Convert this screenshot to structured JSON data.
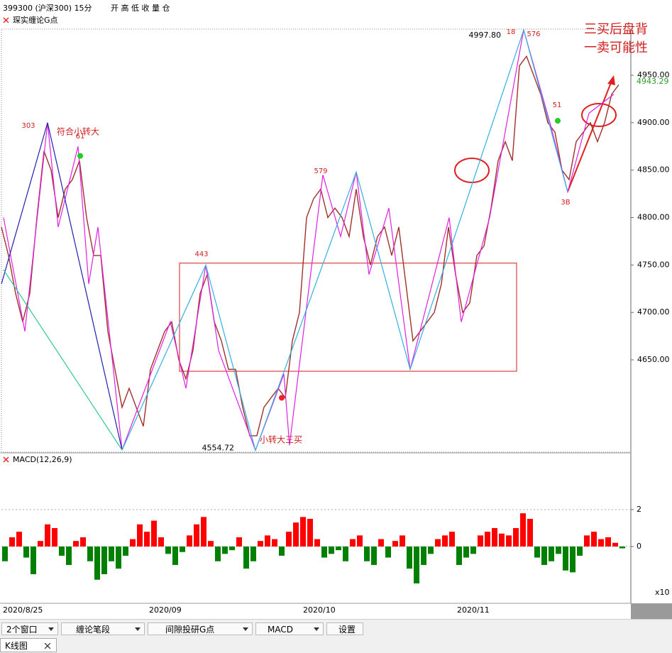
{
  "header": {
    "symbol": "399300 (沪深300) 15分",
    "fields": "开 高 低 收 量 仓",
    "indicator": "琛实缠论G点"
  },
  "chart_data": [
    {
      "type": "line",
      "ylim": [
        4553.5,
        4997.9
      ],
      "xlim": [
        0,
        88.7
      ],
      "yticks": [
        {
          "value": 4950,
          "label": "4950.00"
        },
        {
          "value": 4900,
          "label": "4900.00"
        },
        {
          "value": 4850,
          "label": "4850.00"
        },
        {
          "value": 4800,
          "label": "4800.00"
        },
        {
          "value": 4750,
          "label": "4750.00"
        },
        {
          "value": 4700,
          "label": "4700.00"
        },
        {
          "value": 4650,
          "label": "4650.00"
        }
      ],
      "xticks": [
        {
          "value": 0,
          "label": "2020/8/25"
        },
        {
          "value": 20.6,
          "label": "2020/09"
        },
        {
          "value": 42.3,
          "label": "2020/10"
        },
        {
          "value": 64,
          "label": "2020/11"
        }
      ],
      "last_value": 4943.29,
      "high_label": {
        "value": 4997.8,
        "label": "4997.80"
      },
      "low_label": {
        "value": 4554.72,
        "label": "4554.72"
      },
      "zone": {
        "x": [
          25.1,
          72.6
        ],
        "y": [
          4638,
          4752
        ]
      },
      "series": [
        {
          "color": "#a0302a",
          "x": [
            0,
            1,
            2,
            3,
            4,
            5,
            6,
            7,
            8,
            9,
            10,
            11,
            12,
            13,
            14,
            15,
            16,
            17,
            18,
            19,
            20,
            21,
            22,
            23,
            24,
            25,
            26,
            27,
            28,
            29,
            30,
            31,
            32,
            33,
            34,
            35,
            36,
            37,
            38,
            39,
            40,
            41,
            42,
            43,
            44,
            45,
            46,
            47,
            48,
            49,
            50,
            51,
            52,
            53,
            54,
            55,
            56,
            57,
            58,
            59,
            60,
            61,
            62,
            63,
            64,
            65,
            66,
            67,
            68,
            69,
            70,
            71,
            72,
            73,
            74,
            75,
            76,
            77,
            78,
            79,
            80,
            81,
            82,
            83,
            84,
            85,
            86,
            87
          ],
          "values": [
            4790,
            4760,
            4720,
            4690,
            4720,
            4800,
            4870,
            4850,
            4800,
            4830,
            4840,
            4860,
            4800,
            4760,
            4760,
            4680,
            4640,
            4600,
            4620,
            4600,
            4580,
            4640,
            4660,
            4680,
            4690,
            4650,
            4630,
            4660,
            4720,
            4740,
            4690,
            4670,
            4640,
            4640,
            4600,
            4570,
            4570,
            4600,
            4610,
            4620,
            4610,
            4670,
            4700,
            4800,
            4820,
            4830,
            4800,
            4810,
            4800,
            4780,
            4830,
            4780,
            4750,
            4780,
            4790,
            4760,
            4790,
            4730,
            4670,
            4680,
            4690,
            4700,
            4730,
            4790,
            4740,
            4700,
            4710,
            4760,
            4770,
            4810,
            4860,
            4880,
            4860,
            4960,
            4970,
            4950,
            4930,
            4900,
            4890,
            4850,
            4840,
            4880,
            4890,
            4900,
            4880,
            4900,
            4930,
            4940
          ]
        },
        {
          "color": "#e020e0",
          "x": [
            0.3,
            3.3,
            6.5,
            8,
            10.8,
            12.3,
            13.6,
            17,
            23.8,
            26,
            28.8,
            30.6,
            35.8,
            39.8,
            40.6,
            45.3,
            47.8,
            50,
            51.8,
            54.6,
            57.6,
            63.1,
            64.8,
            68.8,
            73.6,
            77.3,
            79.8,
            82.8,
            86.3
          ],
          "values": [
            4800,
            4680,
            4900,
            4790,
            4875,
            4730,
            4790,
            4555,
            4690,
            4620,
            4750,
            4660,
            4554.72,
            4635,
            4560,
            4845,
            4780,
            4848,
            4740,
            4810,
            4640,
            4800,
            4690,
            4800,
            4997.8,
            4900,
            4827,
            4910,
            4930
          ]
        },
        {
          "color": "#2020b0",
          "x": [
            0,
            6.5,
            17
          ],
          "values": [
            4730,
            4900,
            4555
          ]
        },
        {
          "color": "#30b0e0",
          "x": [
            17,
            28.8,
            35.8,
            50,
            57.6,
            73.6,
            79.8
          ],
          "values": [
            4555,
            4750,
            4554.72,
            4848,
            4640,
            4997.8,
            4827
          ]
        },
        {
          "color": "#30c890",
          "x": [
            0.3,
            17
          ],
          "values": [
            4745,
            4555
          ]
        }
      ],
      "signals": [
        {
          "x": 11.1,
          "y": 4865,
          "color": "#22cc22"
        },
        {
          "x": 78.4,
          "y": 4902,
          "color": "#22cc22"
        },
        {
          "x": 39.5,
          "y": 4610,
          "color": "#ee2222"
        }
      ],
      "annotations": [
        "303",
        "443",
        "579",
        "576",
        "18",
        "3B",
        "61",
        "51",
        "符合小转大",
        "小转大三买",
        "三买后盘背",
        "一卖可能性"
      ]
    },
    {
      "type": "bar",
      "title": "MACD(12,26,9)",
      "ylim": [
        -3.08,
        5
      ],
      "xlim": [
        0,
        88.7
      ],
      "yticks": [
        2,
        0
      ],
      "axis_unit": "x10",
      "colors": {
        "positive": "#ff0000",
        "negative": "#008000"
      },
      "values": [
        -0.8,
        0.5,
        0.8,
        -0.6,
        -1.5,
        0.3,
        1.2,
        1.0,
        -0.5,
        -1.0,
        0.3,
        0.5,
        -0.8,
        -1.8,
        -1.5,
        -0.8,
        -1.2,
        -0.5,
        0.4,
        1.2,
        0.8,
        1.4,
        0.5,
        -0.4,
        -1.0,
        -0.3,
        0.6,
        1.2,
        1.6,
        0.3,
        -0.8,
        -0.4,
        -0.2,
        0.5,
        -1.2,
        -0.8,
        0.3,
        0.6,
        0.4,
        -0.5,
        0.8,
        1.3,
        1.6,
        1.5,
        0.4,
        -0.6,
        -0.4,
        -0.2,
        -0.8,
        0.4,
        0.6,
        -0.8,
        -1.0,
        0.4,
        -0.6,
        0.3,
        0.6,
        -1.2,
        -2.0,
        -1.0,
        -0.4,
        0.4,
        0.6,
        0.8,
        -1.0,
        -0.6,
        -0.4,
        0.6,
        0.8,
        1.0,
        0.7,
        0.6,
        1.0,
        1.8,
        1.5,
        -0.6,
        -1.0,
        -0.8,
        -0.4,
        -1.3,
        -1.4,
        -0.5,
        0.6,
        0.8,
        0.4,
        0.5,
        0.2,
        -0.1
      ]
    }
  ],
  "toolbar": {
    "buttons": [
      "2个窗口",
      "缠论笔段",
      "间隙投研G点",
      "MACD",
      "设置"
    ],
    "tab": "K线图"
  }
}
